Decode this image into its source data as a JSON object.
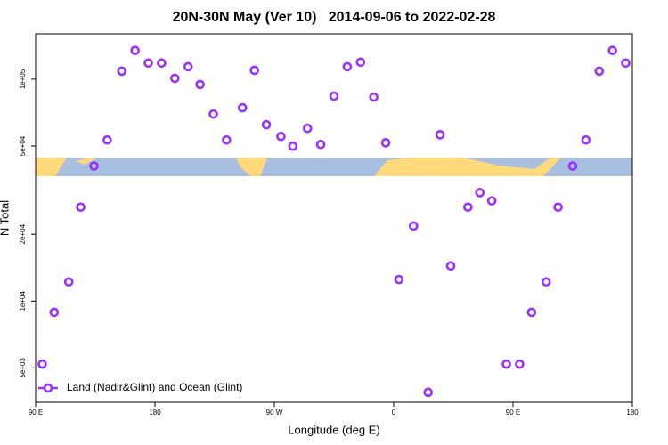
{
  "chart_data": {
    "type": "scatter",
    "title": "20N-30N May (Ver 10)   2014-09-06 to 2022-02-28",
    "x_label": "Longitude (deg E)",
    "y_label": "N Total",
    "log_y": true,
    "xlim": [
      90,
      540
    ],
    "ylim": [
      3500,
      160000
    ],
    "xticks": [
      {
        "value": 90,
        "label": "90 E"
      },
      180,
      {
        "value": 270,
        "label": "90 W"
      },
      {
        "value": 360,
        "label": "0"
      },
      {
        "value": 450,
        "label": "90 E"
      },
      {
        "value": 540,
        "label": "180"
      }
    ],
    "yticks": [
      {
        "value": 5000,
        "label": "5e+03"
      },
      {
        "value": 10000,
        "label": "1e+04"
      },
      {
        "value": 20000,
        "label": "2e+04"
      },
      {
        "value": 50000,
        "label": "5e+04"
      },
      {
        "value": 100000,
        "label": "1e+05"
      }
    ],
    "x": [
      95,
      104,
      115,
      124,
      134,
      144,
      155,
      165,
      175,
      185,
      195,
      205,
      214,
      224,
      234,
      246,
      255,
      264,
      275,
      284,
      295,
      305,
      315,
      325,
      335,
      345,
      354,
      364,
      375,
      386,
      395,
      403,
      416,
      425,
      434,
      445,
      455,
      464,
      475,
      484,
      495,
      505,
      515,
      525,
      535
    ],
    "series": [
      {
        "name": "Land (Nadir&Glint) and Ocean (Glint)",
        "color": "#9b30ff",
        "values": [
          5200,
          8900,
          12200,
          26500,
          40600,
          53200,
          108700,
          134600,
          118200,
          118200,
          100900,
          113800,
          94600,
          69600,
          53200,
          74300,
          109600,
          62300,
          55200,
          49900,
          60000,
          50800,
          83800,
          113800,
          119300,
          83000,
          51700,
          12500,
          21800,
          3880,
          56200,
          14400,
          26500,
          30800,
          28300,
          5200,
          5200,
          8900,
          12200,
          26500,
          40600,
          53200,
          108700,
          134600,
          118200
        ]
      }
    ],
    "legend": "bottom-left"
  }
}
